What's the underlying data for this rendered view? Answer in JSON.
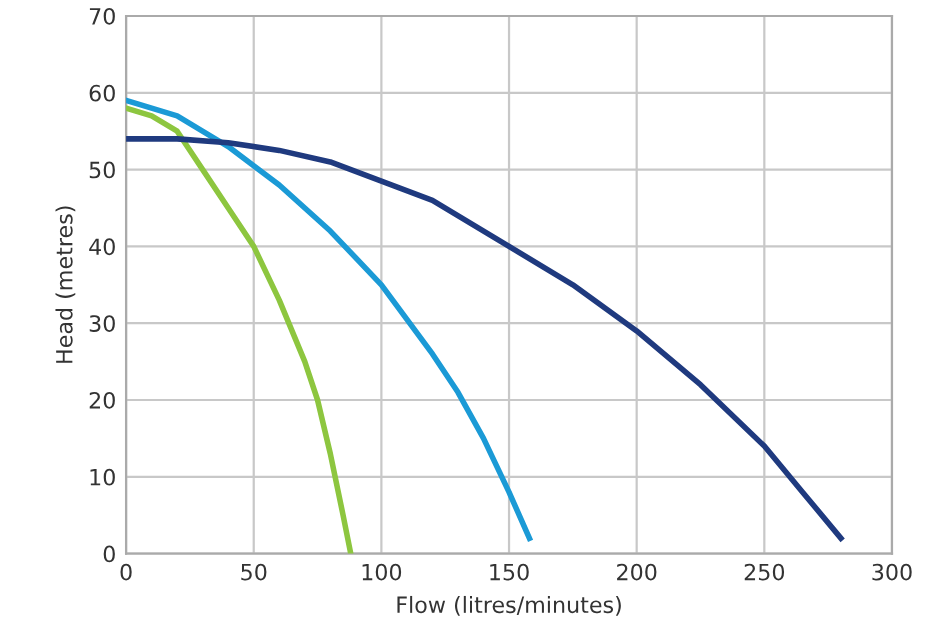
{
  "chart_data": {
    "type": "line",
    "xlabel": "Flow (litres/minutes)",
    "ylabel": "Head (metres)",
    "xlim": [
      0,
      300
    ],
    "ylim": [
      0,
      70
    ],
    "xticks": [
      0,
      50,
      100,
      150,
      200,
      250,
      300
    ],
    "yticks": [
      0,
      10,
      20,
      30,
      40,
      50,
      60,
      70
    ],
    "grid": true,
    "marker": "none",
    "line_style": "solid",
    "series": [
      {
        "color": "#8dc63f",
        "x": [
          0,
          10,
          20,
          30,
          40,
          50,
          60,
          70,
          75,
          80,
          85,
          88
        ],
        "values": [
          58,
          57,
          55,
          50,
          45,
          40,
          33,
          25,
          20,
          13,
          5,
          0
        ]
      },
      {
        "color": "#1b9ad6",
        "x": [
          0,
          20,
          40,
          60,
          80,
          100,
          120,
          130,
          140,
          150,
          158
        ],
        "values": [
          59,
          57,
          53,
          48,
          42,
          35,
          26,
          21,
          15,
          8,
          2
        ]
      },
      {
        "color": "#1f3a7f",
        "x": [
          0,
          20,
          40,
          60,
          80,
          100,
          120,
          150,
          175,
          200,
          225,
          250,
          265,
          280
        ],
        "values": [
          54,
          54,
          53.5,
          52.5,
          51,
          48.5,
          46,
          40,
          35,
          29,
          22,
          14,
          8,
          2
        ]
      }
    ]
  }
}
